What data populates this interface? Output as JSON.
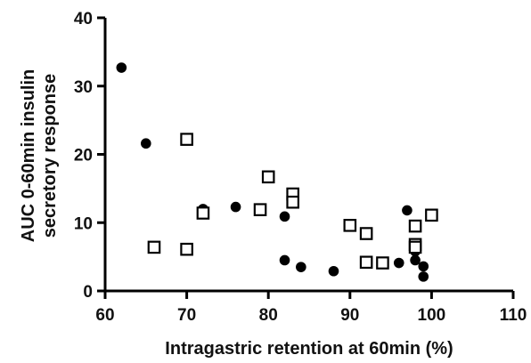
{
  "chart_data": {
    "type": "scatter",
    "xlabel": "Intragastric retention at 60min (%)",
    "ylabel_lines": [
      "AUC 0-60min insulin",
      "secretory response"
    ],
    "xlim": [
      60,
      110
    ],
    "ylim": [
      0,
      40
    ],
    "x_ticks": [
      60,
      70,
      80,
      90,
      100,
      110
    ],
    "y_ticks": [
      0,
      10,
      20,
      30,
      40
    ],
    "grid": false,
    "series": [
      {
        "marker": "filled-circle",
        "color": "#000000",
        "points": [
          [
            62,
            32.7
          ],
          [
            65,
            21.6
          ],
          [
            72,
            12.0
          ],
          [
            76,
            12.3
          ],
          [
            82,
            10.9
          ],
          [
            82,
            4.5
          ],
          [
            84,
            3.5
          ],
          [
            88,
            2.9
          ],
          [
            96,
            4.1
          ],
          [
            97,
            11.8
          ],
          [
            98,
            5.8
          ],
          [
            98,
            4.5
          ],
          [
            99,
            3.6
          ],
          [
            99,
            2.1
          ]
        ]
      },
      {
        "marker": "open-square",
        "color": "#000000",
        "points": [
          [
            66,
            6.4
          ],
          [
            70,
            22.2
          ],
          [
            70,
            6.1
          ],
          [
            72,
            11.4
          ],
          [
            79,
            11.9
          ],
          [
            80,
            16.7
          ],
          [
            83,
            14.2
          ],
          [
            83,
            13.0
          ],
          [
            90,
            9.6
          ],
          [
            92,
            8.4
          ],
          [
            92,
            4.2
          ],
          [
            94,
            4.1
          ],
          [
            98,
            9.5
          ],
          [
            98,
            6.8
          ],
          [
            98,
            6.4
          ],
          [
            100,
            11.1
          ]
        ]
      }
    ]
  }
}
